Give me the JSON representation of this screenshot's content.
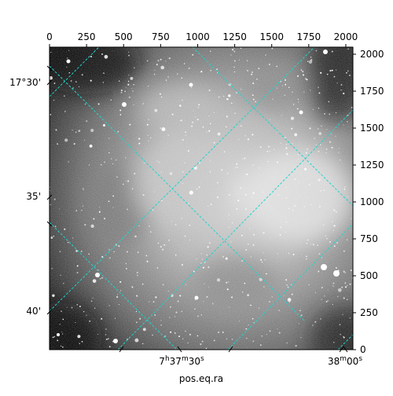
{
  "image": {
    "description_id": "astronomical-sky-image",
    "colormap": "grayscale",
    "grid_color": "#22d3cf"
  },
  "pixel_axes": {
    "top_ticks": [
      "0",
      "250",
      "500",
      "750",
      "1000",
      "1250",
      "1500",
      "1750",
      "2000"
    ],
    "top_values": [
      0,
      250,
      500,
      750,
      1000,
      1250,
      1500,
      1750,
      2000
    ],
    "right_ticks": [
      "0",
      "250",
      "500",
      "750",
      "1000",
      "1250",
      "1500",
      "1750",
      "2000"
    ],
    "right_values": [
      0,
      250,
      500,
      750,
      1000,
      1250,
      1500,
      1750,
      2000
    ],
    "range": [
      0,
      2048
    ]
  },
  "world_axes": {
    "dec_ticks": [
      "17°30'",
      "35'",
      "40'"
    ],
    "ra_ticks": [
      {
        "base": "7",
        "h": "h",
        "mid": "37",
        "m": "m",
        "sec": "30",
        "s": "s"
      },
      {
        "base": "",
        "h": "",
        "mid": "38",
        "m": "m",
        "sec": "00",
        "s": "s"
      }
    ],
    "xlabel": "pos.eq.ra"
  }
}
